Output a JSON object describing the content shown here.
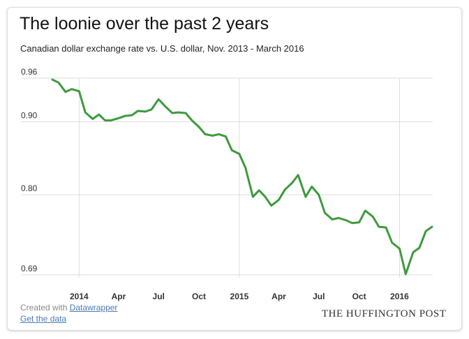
{
  "header": {
    "title": "The loonie over the past 2 years",
    "subtitle": "Canadian dollar exchange rate vs. U.S. dollar, Nov. 2013 - March 2016"
  },
  "footer": {
    "created_with_prefix": "Created with",
    "created_with_link": "Datawrapper",
    "get_data_link": "Get the data",
    "brand": "THE HUFFINGTON POST"
  },
  "colors": {
    "line": "#3d9a3d",
    "grid": "#dddddd",
    "axis_text": "#333333"
  },
  "chart_data": {
    "type": "line",
    "title": "The loonie over the past 2 years",
    "ylim": [
      0.69,
      0.96
    ],
    "grid": true,
    "y_ticks": [
      0.96,
      0.9,
      0.8,
      0.69
    ],
    "y_tick_labels": [
      "0.96",
      "0.90",
      "0.80",
      "0.69"
    ],
    "x_ticks": [
      "2014-01-01",
      "2014-04-01",
      "2014-07-01",
      "2014-10-01",
      "2015-01-01",
      "2015-04-01",
      "2015-07-01",
      "2015-10-01",
      "2016-01-01"
    ],
    "x_tick_labels": [
      "2014",
      "Apr",
      "Jul",
      "Oct",
      "2015",
      "Apr",
      "Jul",
      "Oct",
      "2016"
    ],
    "major_x_ticks": [
      "2014-01-01",
      "2015-01-01",
      "2016-01-01"
    ],
    "series": [
      {
        "x": [
          "2013-11-01",
          "2013-11-15",
          "2013-12-01",
          "2013-12-15",
          "2014-01-01",
          "2014-01-15",
          "2014-02-01",
          "2014-02-15",
          "2014-03-01",
          "2014-03-15",
          "2014-04-01",
          "2014-04-15",
          "2014-05-01",
          "2014-05-15",
          "2014-06-01",
          "2014-06-15",
          "2014-07-01",
          "2014-07-15",
          "2014-08-01",
          "2014-08-15",
          "2014-09-01",
          "2014-09-15",
          "2014-10-01",
          "2014-10-15",
          "2014-11-01",
          "2014-11-15",
          "2014-12-01",
          "2014-12-15",
          "2015-01-01",
          "2015-01-15",
          "2015-02-01",
          "2015-02-15",
          "2015-03-01",
          "2015-03-15",
          "2015-04-01",
          "2015-04-15",
          "2015-05-01",
          "2015-05-15",
          "2015-06-01",
          "2015-06-15",
          "2015-07-01",
          "2015-07-15",
          "2015-08-01",
          "2015-08-15",
          "2015-09-01",
          "2015-09-15",
          "2015-10-01",
          "2015-10-15",
          "2015-11-01",
          "2015-11-15",
          "2015-12-01",
          "2015-12-15",
          "2016-01-01",
          "2016-01-15",
          "2016-02-01",
          "2016-02-15",
          "2016-03-01",
          "2016-03-15"
        ],
        "y": [
          0.958,
          0.954,
          0.941,
          0.945,
          0.942,
          0.913,
          0.904,
          0.91,
          0.902,
          0.902,
          0.905,
          0.908,
          0.909,
          0.915,
          0.914,
          0.917,
          0.931,
          0.922,
          0.912,
          0.913,
          0.912,
          0.902,
          0.893,
          0.883,
          0.881,
          0.883,
          0.88,
          0.861,
          0.856,
          0.837,
          0.797,
          0.806,
          0.797,
          0.785,
          0.793,
          0.807,
          0.816,
          0.827,
          0.797,
          0.811,
          0.8,
          0.775,
          0.766,
          0.768,
          0.765,
          0.761,
          0.762,
          0.778,
          0.77,
          0.756,
          0.755,
          0.734,
          0.726,
          0.691,
          0.721,
          0.727,
          0.75,
          0.756
        ]
      }
    ]
  }
}
